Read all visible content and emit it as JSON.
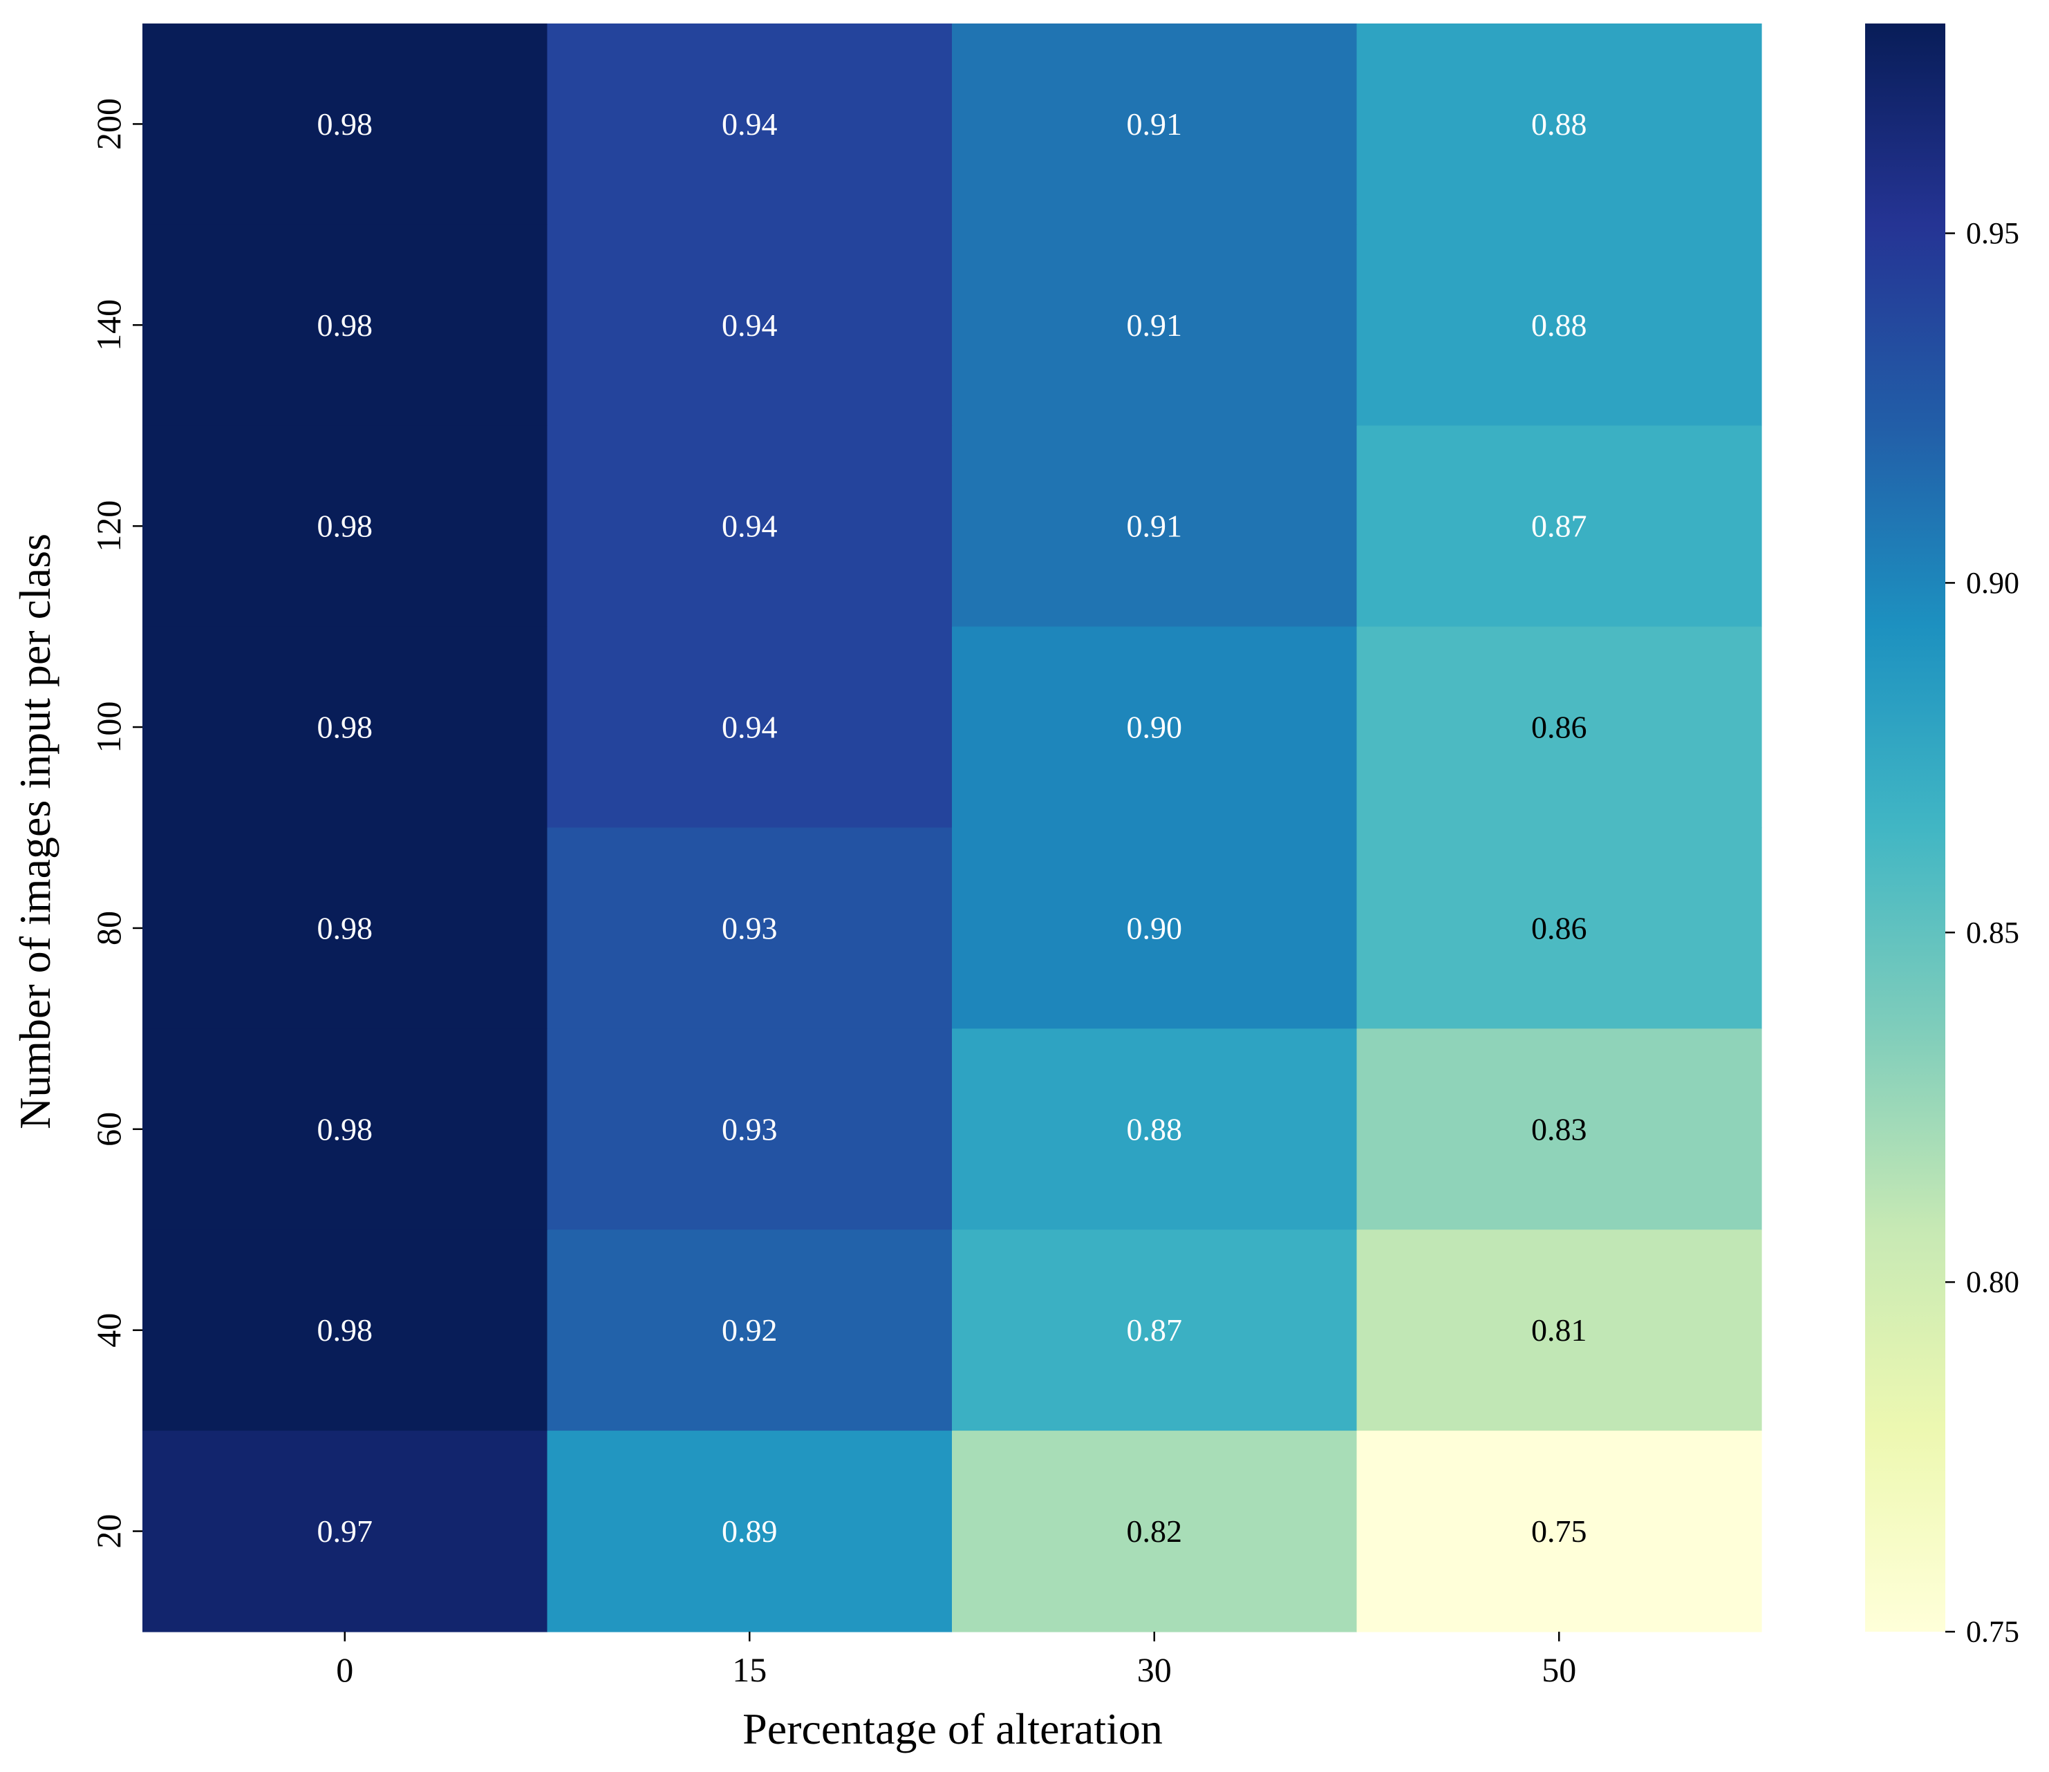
{
  "chart_data": {
    "type": "heatmap",
    "title": "",
    "xlabel": "Percentage of alteration",
    "ylabel": "Number of images input per class",
    "x_categories": [
      "0",
      "15",
      "30",
      "50"
    ],
    "y_categories": [
      "200",
      "140",
      "120",
      "100",
      "80",
      "60",
      "40",
      "20"
    ],
    "values": [
      [
        0.98,
        0.94,
        0.91,
        0.88
      ],
      [
        0.98,
        0.94,
        0.91,
        0.88
      ],
      [
        0.98,
        0.94,
        0.91,
        0.87
      ],
      [
        0.98,
        0.94,
        0.9,
        0.86
      ],
      [
        0.98,
        0.93,
        0.9,
        0.86
      ],
      [
        0.98,
        0.93,
        0.88,
        0.83
      ],
      [
        0.98,
        0.92,
        0.87,
        0.81
      ],
      [
        0.97,
        0.89,
        0.82,
        0.75
      ]
    ],
    "annotation_labels": [
      [
        "0.98",
        "0.94",
        "0.91",
        "0.88"
      ],
      [
        "0.98",
        "0.94",
        "0.91",
        "0.88"
      ],
      [
        "0.98",
        "0.94",
        "0.91",
        "0.87"
      ],
      [
        "0.98",
        "0.94",
        "0.90",
        "0.86"
      ],
      [
        "0.98",
        "0.93",
        "0.90",
        "0.86"
      ],
      [
        "0.98",
        "0.93",
        "0.88",
        "0.83"
      ],
      [
        "0.98",
        "0.92",
        "0.87",
        "0.81"
      ],
      [
        "0.97",
        "0.89",
        "0.82",
        "0.75"
      ]
    ],
    "colormap": "YlGnBu",
    "colorbar": {
      "range": [
        0.75,
        0.98
      ],
      "ticks": [
        0.75,
        0.8,
        0.85,
        0.9,
        0.95
      ],
      "tick_labels": [
        "0.75",
        "0.80",
        "0.85",
        "0.90",
        "0.95"
      ]
    },
    "annotation_text_colors": {
      "light": "#ffffff",
      "dark": "#000000"
    }
  }
}
